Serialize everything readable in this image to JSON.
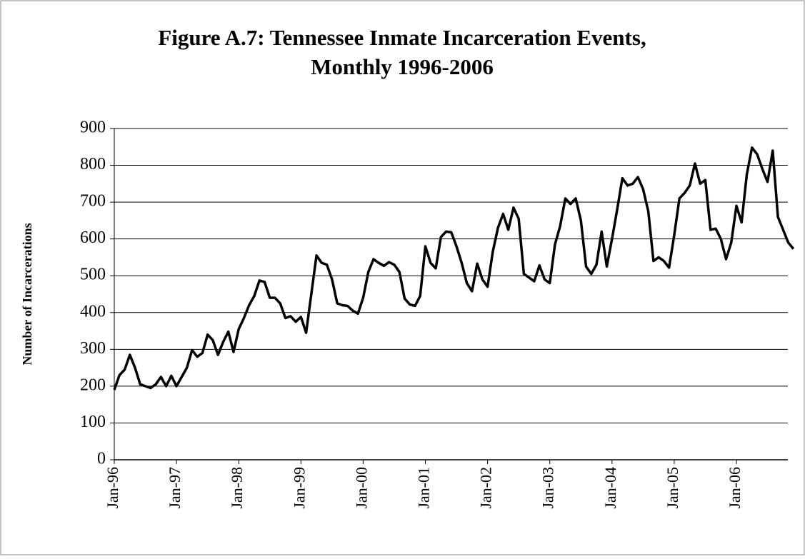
{
  "chart_data": {
    "type": "line",
    "title": [
      "Figure A.7:  Tennessee Inmate Incarceration Events,",
      "Monthly 1996-2006"
    ],
    "y_label": "Number of Incarcerations",
    "categories": [
      "Jan-96",
      null,
      null,
      null,
      null,
      null,
      null,
      null,
      null,
      null,
      null,
      null,
      "Jan-97",
      null,
      null,
      null,
      null,
      null,
      null,
      null,
      null,
      null,
      null,
      null,
      "Jan-98",
      null,
      null,
      null,
      null,
      null,
      null,
      null,
      null,
      null,
      null,
      null,
      "Jan-99",
      null,
      null,
      null,
      null,
      null,
      null,
      null,
      null,
      null,
      null,
      null,
      "Jan-00",
      null,
      null,
      null,
      null,
      null,
      null,
      null,
      null,
      null,
      null,
      null,
      "Jan-01",
      null,
      null,
      null,
      null,
      null,
      null,
      null,
      null,
      null,
      null,
      null,
      "Jan-02",
      null,
      null,
      null,
      null,
      null,
      null,
      null,
      null,
      null,
      null,
      null,
      "Jan-03",
      null,
      null,
      null,
      null,
      null,
      null,
      null,
      null,
      null,
      null,
      null,
      "Jan-04",
      null,
      null,
      null,
      null,
      null,
      null,
      null,
      null,
      null,
      null,
      null,
      "Jan-05",
      null,
      null,
      null,
      null,
      null,
      null,
      null,
      null,
      null,
      null,
      null,
      "Jan-06",
      null,
      null,
      null,
      null,
      null,
      null,
      null,
      null,
      null,
      null,
      null
    ],
    "values": [
      190,
      230,
      245,
      285,
      250,
      205,
      200,
      195,
      205,
      225,
      200,
      228,
      200,
      225,
      250,
      298,
      280,
      290,
      340,
      325,
      285,
      320,
      348,
      293,
      355,
      385,
      420,
      445,
      487,
      483,
      440,
      440,
      425,
      385,
      390,
      375,
      388,
      345,
      450,
      555,
      535,
      530,
      490,
      425,
      420,
      418,
      405,
      397,
      440,
      510,
      545,
      535,
      527,
      537,
      530,
      510,
      438,
      422,
      418,
      445,
      580,
      535,
      520,
      605,
      620,
      618,
      580,
      535,
      480,
      458,
      533,
      490,
      470,
      565,
      630,
      668,
      625,
      685,
      655,
      505,
      495,
      485,
      528,
      490,
      480,
      585,
      635,
      710,
      695,
      710,
      650,
      525,
      505,
      530,
      620,
      525,
      600,
      680,
      765,
      745,
      750,
      768,
      735,
      675,
      540,
      550,
      540,
      522,
      610,
      710,
      725,
      745,
      805,
      750,
      760,
      625,
      628,
      600,
      545,
      590,
      690,
      645,
      775,
      848,
      830,
      790,
      755,
      840,
      660,
      625,
      590,
      573
    ],
    "color": "#000000",
    "ylim": [
      0,
      900
    ],
    "yticks": [
      0,
      100,
      200,
      300,
      400,
      500,
      600,
      700,
      800,
      900
    ],
    "grid": true
  }
}
